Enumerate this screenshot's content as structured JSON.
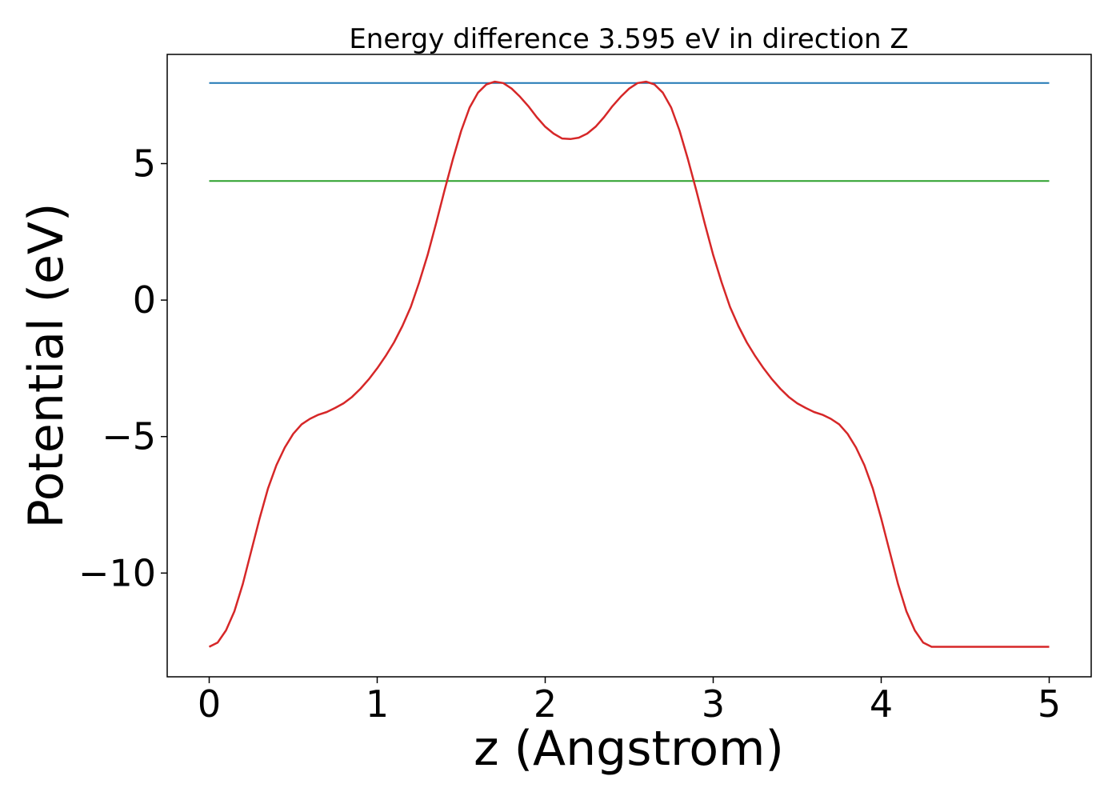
{
  "chart_data": {
    "type": "line",
    "title": "Energy difference 3.595 eV in direction Z",
    "xlabel": "z (Angstrom)",
    "ylabel": "Potential (eV)",
    "xlim": [
      -0.25,
      5.25
    ],
    "ylim": [
      -13.8,
      9.0
    ],
    "x_ticks": [
      0,
      1,
      2,
      3,
      4,
      5
    ],
    "x_tick_labels": [
      "0",
      "1",
      "2",
      "3",
      "4",
      "5"
    ],
    "y_ticks": [
      -10,
      -5,
      0,
      5
    ],
    "y_tick_labels": [
      "−10",
      "−5",
      "0",
      "5"
    ],
    "grid": false,
    "legend": "none",
    "series": [
      {
        "color": "#1f77b4",
        "x": [
          0,
          5
        ],
        "y": [
          7.95,
          7.95
        ]
      },
      {
        "color": "#2ca02c",
        "x": [
          0,
          5
        ],
        "y": [
          4.36,
          4.36
        ]
      },
      {
        "color": "#d62728",
        "x": [
          0.0,
          0.05,
          0.1,
          0.15,
          0.2,
          0.25,
          0.3,
          0.35,
          0.4,
          0.45,
          0.5,
          0.55,
          0.6,
          0.65,
          0.7,
          0.75,
          0.8,
          0.85,
          0.9,
          0.95,
          1.0,
          1.05,
          1.1,
          1.15,
          1.2,
          1.25,
          1.3,
          1.35,
          1.4,
          1.45,
          1.5,
          1.55,
          1.6,
          1.65,
          1.7,
          1.75,
          1.8,
          1.85,
          1.9,
          1.95,
          2.0,
          2.05,
          2.1,
          2.15,
          2.2,
          2.25,
          2.3,
          2.35,
          2.4,
          2.45,
          2.5,
          2.55,
          2.6,
          2.65,
          2.7,
          2.75,
          2.8,
          2.85,
          2.9,
          2.95,
          3.0,
          3.05,
          3.1,
          3.15,
          3.2,
          3.25,
          3.3,
          3.35,
          3.4,
          3.45,
          3.5,
          3.55,
          3.6,
          3.65,
          3.7,
          3.75,
          3.8,
          3.85,
          3.9,
          3.95,
          4.0,
          4.05,
          4.1,
          4.15,
          4.2,
          4.25,
          4.3,
          4.35,
          4.4,
          4.45,
          4.5,
          4.55,
          4.6,
          4.65,
          4.7,
          4.75,
          4.8,
          4.85,
          4.9,
          4.95,
          5.0
        ],
        "y": [
          -12.7,
          -12.55,
          -12.1,
          -11.4,
          -10.4,
          -9.2,
          -8.0,
          -6.9,
          -6.05,
          -5.4,
          -4.9,
          -4.55,
          -4.35,
          -4.2,
          -4.1,
          -3.95,
          -3.78,
          -3.55,
          -3.25,
          -2.9,
          -2.5,
          -2.05,
          -1.55,
          -0.95,
          -0.25,
          0.65,
          1.65,
          2.8,
          4.0,
          5.15,
          6.2,
          7.05,
          7.6,
          7.9,
          8.0,
          7.95,
          7.75,
          7.45,
          7.1,
          6.7,
          6.35,
          6.1,
          5.92,
          5.9,
          5.95,
          6.1,
          6.35,
          6.7,
          7.1,
          7.45,
          7.75,
          7.95,
          8.0,
          7.9,
          7.6,
          7.05,
          6.2,
          5.15,
          4.0,
          2.8,
          1.65,
          0.65,
          -0.25,
          -0.95,
          -1.55,
          -2.05,
          -2.5,
          -2.9,
          -3.25,
          -3.55,
          -3.78,
          -3.95,
          -4.1,
          -4.2,
          -4.35,
          -4.55,
          -4.9,
          -5.4,
          -6.05,
          -6.9,
          -8.0,
          -9.2,
          -10.4,
          -11.4,
          -12.1,
          -12.55,
          -12.7,
          -12.7,
          -12.7,
          -12.7,
          -12.7,
          -12.7,
          -12.7,
          -12.7,
          -12.7,
          -12.7,
          -12.7,
          -12.7,
          -12.7,
          -12.7,
          -12.7
        ]
      }
    ]
  }
}
